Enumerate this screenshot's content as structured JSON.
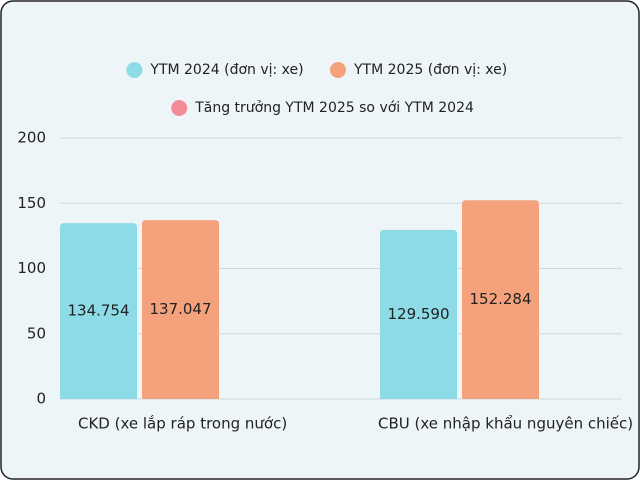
{
  "chart_data": {
    "type": "bar",
    "categories": [
      "CKD (xe lắp ráp trong nước)",
      "CBU (xe nhập khẩu nguyên chiếc)"
    ],
    "series": [
      {
        "name": "YTM 2024 (đơn vị: xe)",
        "color": "#8ddbe6",
        "values": [
          134.754,
          129.59
        ],
        "value_labels": [
          "134.754",
          "129.590"
        ]
      },
      {
        "name": "YTM 2025 (đơn vị: xe)",
        "color": "#f5a27c",
        "values": [
          137.047,
          152.284
        ],
        "value_labels": [
          "137.047",
          "152.284"
        ]
      },
      {
        "name": "Tăng trưởng YTM 2025 so với YTM 2024",
        "color": "#f48c98",
        "values": [
          null,
          null
        ]
      }
    ],
    "ylim": [
      0,
      200
    ],
    "yticks": [
      0,
      50,
      100,
      150,
      200
    ],
    "grid": true
  }
}
